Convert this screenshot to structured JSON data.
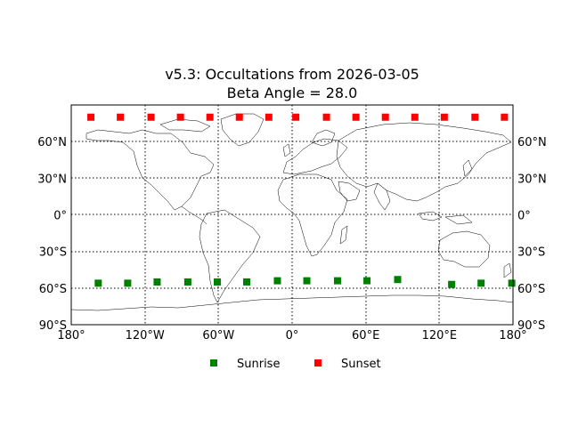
{
  "chart_data": {
    "type": "scatter",
    "title": "v5.3: Occultations from 2026-03-05",
    "subtitle": "Beta Angle = 28.0",
    "xlabel": "",
    "ylabel": "",
    "xlim": [
      -180,
      180
    ],
    "ylim": [
      -90,
      90
    ],
    "grid": true,
    "grid_style": "dotted",
    "x_ticks": [
      -180,
      -120,
      -60,
      0,
      60,
      120,
      180
    ],
    "x_tick_labels": [
      "180°",
      "120°W",
      "60°W",
      "0°",
      "60°E",
      "120°E",
      "180°"
    ],
    "y_ticks": [
      -90,
      -60,
      -30,
      0,
      30,
      60
    ],
    "y_tick_labels": [
      "90°S",
      "60°S",
      "30°S",
      "0°",
      "30°N",
      "60°N"
    ],
    "background": "world map coastlines and country borders (equirectangular)",
    "legend_placement": "below",
    "marker": "square",
    "series": [
      {
        "name": "Sunrise",
        "color": "#008000",
        "x": [
          -158,
          -134,
          -110,
          -85,
          -61,
          -37,
          -12,
          12,
          37,
          61,
          86,
          130,
          154,
          179
        ],
        "y": [
          -56,
          -56,
          -55,
          -55,
          -55,
          -55,
          -54,
          -54,
          -54,
          -54,
          -53,
          -57,
          -56,
          -56
        ]
      },
      {
        "name": "Sunset",
        "color": "#ff0000",
        "x": [
          -164,
          -140,
          -115,
          -91,
          -67,
          -43,
          -19,
          3,
          28,
          52,
          76,
          100,
          124,
          149,
          173
        ],
        "y": [
          80,
          80,
          80,
          80,
          80,
          80,
          80,
          80,
          80,
          80,
          80,
          80,
          80,
          80,
          80
        ]
      }
    ]
  }
}
